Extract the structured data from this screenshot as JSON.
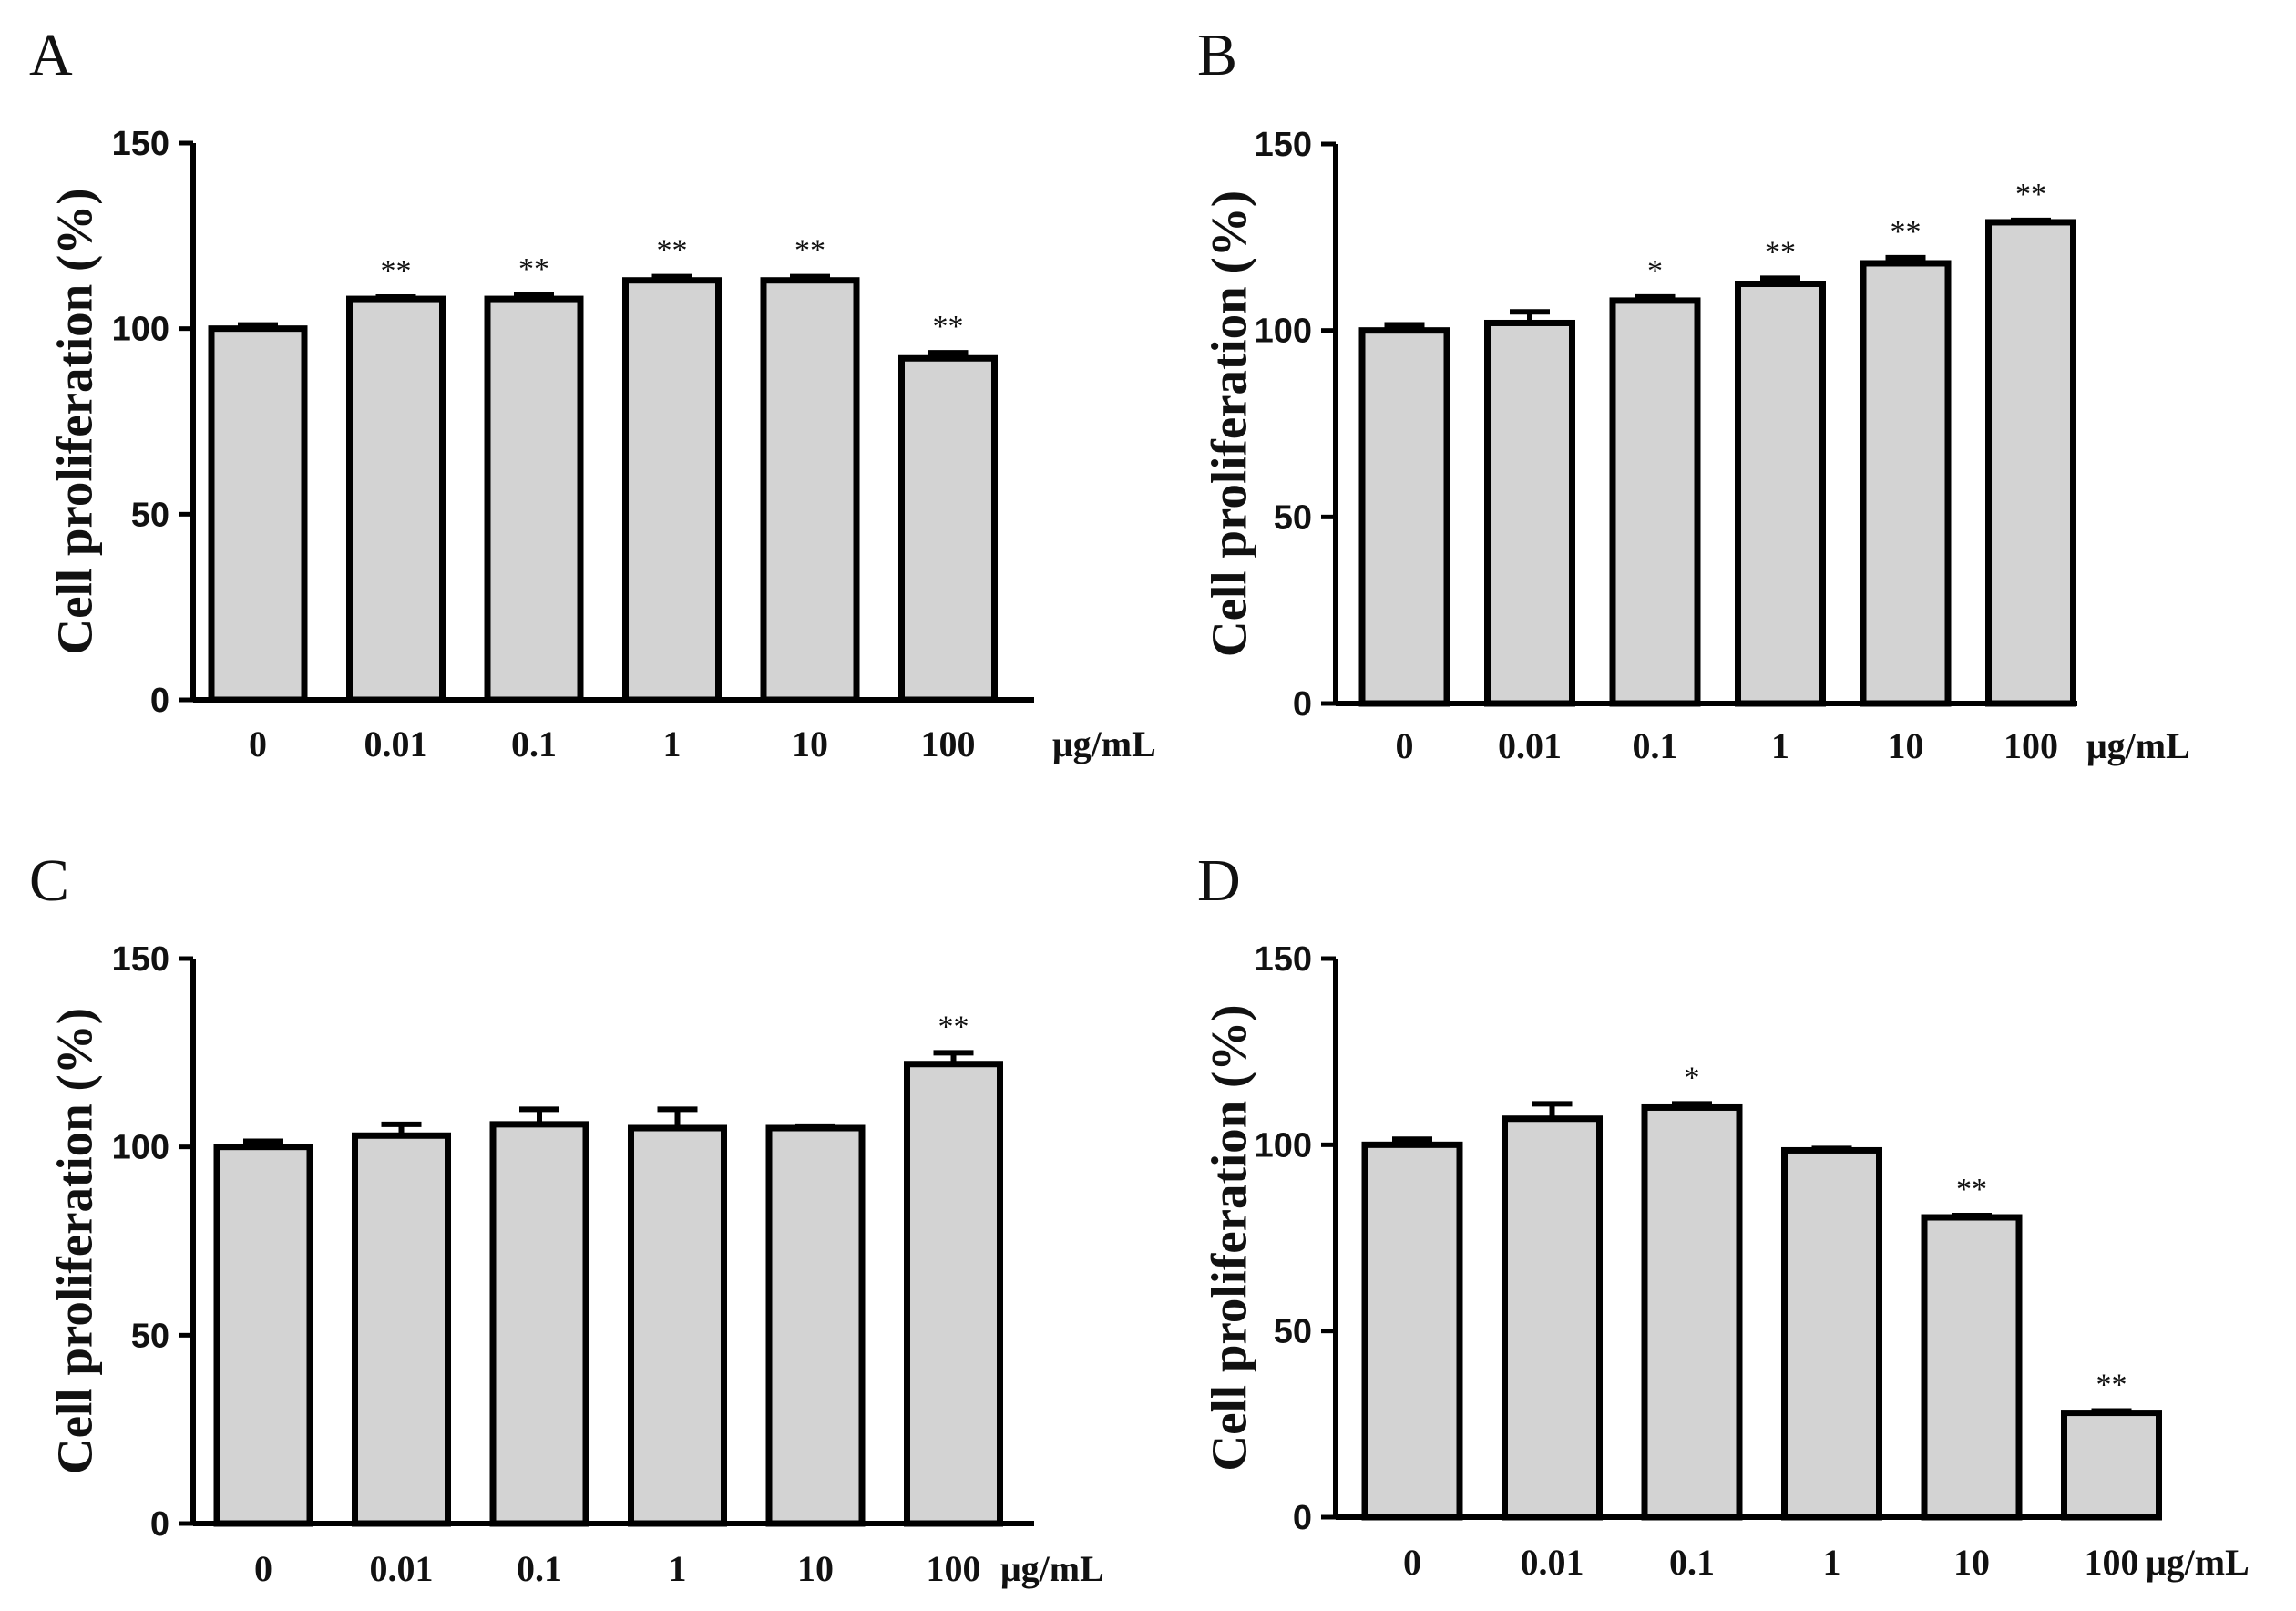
{
  "chart_data": [
    {
      "type": "bar",
      "panel": "A",
      "categories": [
        "0",
        "0.01",
        "0.1",
        "1",
        "10",
        "100"
      ],
      "values": [
        100,
        108,
        108,
        113,
        113,
        92
      ],
      "errors": [
        1,
        0.5,
        1,
        1,
        1,
        1.5
      ],
      "significance": [
        "",
        "**",
        "**",
        "**",
        "**",
        "**"
      ],
      "ylabel": "Cell proliferation (%)",
      "xunit": "μg/mL",
      "ylim": [
        0,
        150
      ],
      "yticks": [
        "0",
        "50",
        "100",
        "150"
      ]
    },
    {
      "type": "bar",
      "panel": "B",
      "categories": [
        "0",
        "0.01",
        "0.1",
        "1",
        "10",
        "100"
      ],
      "values": [
        100,
        102,
        108,
        112.5,
        118,
        129
      ],
      "errors": [
        1.5,
        3,
        1,
        1.5,
        1.5,
        0.5
      ],
      "significance": [
        "",
        "",
        "*",
        "**",
        "**",
        "**"
      ],
      "ylabel": "Cell proliferation (%)",
      "xunit": "μg/mL",
      "ylim": [
        0,
        150
      ],
      "yticks": [
        "0",
        "50",
        "100",
        "150"
      ]
    },
    {
      "type": "bar",
      "panel": "C",
      "categories": [
        "0",
        "0.01",
        "0.1",
        "1",
        "10",
        "100"
      ],
      "values": [
        100,
        103,
        106,
        105,
        105,
        122
      ],
      "errors": [
        1.5,
        3,
        4,
        5,
        0.5,
        3
      ],
      "significance": [
        "",
        "",
        "",
        "",
        "",
        "**"
      ],
      "ylabel": "Cell proliferation (%)",
      "xunit": "μg/mL",
      "ylim": [
        0,
        150
      ],
      "yticks": [
        "0",
        "50",
        "100",
        "150"
      ]
    },
    {
      "type": "bar",
      "panel": "D",
      "categories": [
        "0",
        "0.01",
        "0.1",
        "1",
        "10",
        "100"
      ],
      "values": [
        100,
        107,
        110,
        98.5,
        80.5,
        28
      ],
      "errors": [
        1.5,
        4,
        1,
        0.5,
        0.5,
        0.5
      ],
      "significance": [
        "",
        "",
        "*",
        "",
        "**",
        "**"
      ],
      "ylabel": "Cell proliferation (%)",
      "xunit": "μg/mL",
      "ylim": [
        0,
        150
      ],
      "yticks": [
        "0",
        "50",
        "100",
        "150"
      ]
    }
  ]
}
